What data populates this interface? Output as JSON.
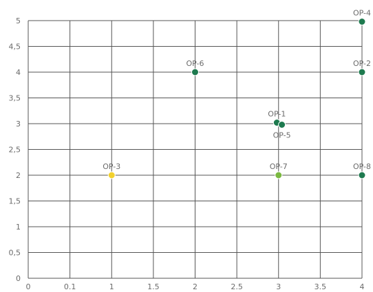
{
  "chart_data": {
    "type": "scatter",
    "x_tick_labels": [
      "0",
      "0.1",
      "1",
      "1.5",
      "2",
      "2.5",
      "3",
      "3.5",
      "4"
    ],
    "y_tick_labels": [
      "0",
      "0,5",
      "1",
      "1,5",
      "2",
      "2,5",
      "3",
      "3,5",
      "4",
      "4,5",
      "5"
    ],
    "ylim": [
      0,
      5
    ],
    "grid": true,
    "points": [
      {
        "label": "OP-1",
        "x": 2.98,
        "y": 3.02,
        "color": "#1e7a4f"
      },
      {
        "label": "OP-2",
        "x": 4,
        "y": 4,
        "color": "#1e7a4f"
      },
      {
        "label": "OP-3",
        "x": 1,
        "y": 2,
        "color": "#f2d12e"
      },
      {
        "label": "OP-4",
        "x": 4,
        "y": 4.98,
        "color": "#1e7a4f"
      },
      {
        "label": "OP-5",
        "x": 3.04,
        "y": 2.98,
        "color": "#1e7a4f"
      },
      {
        "label": "OP-6",
        "x": 2,
        "y": 4,
        "color": "#1e7a4f"
      },
      {
        "label": "OP-7",
        "x": 3,
        "y": 2,
        "color": "#7ab840"
      },
      {
        "label": "OP-8",
        "x": 4,
        "y": 2,
        "color": "#1e7a4f"
      }
    ]
  }
}
